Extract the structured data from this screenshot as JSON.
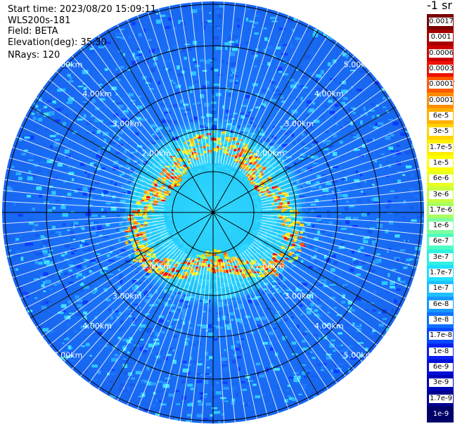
{
  "header": {
    "start_time": "Start time: 2023/08/20 15:09:11",
    "instrument": "WLS200s-181",
    "field": "Field: BETA",
    "elevation": "Elevation(deg): 35.30",
    "nrays": "NRays: 120"
  },
  "range_ring_labels": [
    "2.00km",
    "3.00km",
    "4.00km",
    "5.00km"
  ],
  "colorbar": {
    "unit": "-1 sr",
    "ticks": [
      "0.0017",
      "0.001",
      "0.0006",
      "0.0003",
      "0.00017",
      "0.0001",
      "6e-5",
      "3e-5",
      "1.7e-5",
      "1e-5",
      "6e-6",
      "3e-6",
      "1.7e-6",
      "1e-6",
      "6e-7",
      "3e-7",
      "1.7e-7",
      "1e-7",
      "6e-8",
      "3e-8",
      "1.7e-8",
      "1e-8",
      "6e-9",
      "3e-9",
      "1.7e-9",
      "1e-9"
    ],
    "colors": [
      "#7a0000",
      "#a80000",
      "#cc0000",
      "#ee1100",
      "#ff5a00",
      "#ff8c00",
      "#ffb000",
      "#ffd400",
      "#ffee00",
      "#ffff00",
      "#e8ff20",
      "#c8ff40",
      "#a8ff60",
      "#7dffa0",
      "#50ffc0",
      "#30f0e0",
      "#20e0ff",
      "#20c0ff",
      "#1898ff",
      "#1070ff",
      "#0a48ff",
      "#0820f0",
      "#0010d8",
      "#0000b8",
      "#000090",
      "#000068"
    ]
  }
}
